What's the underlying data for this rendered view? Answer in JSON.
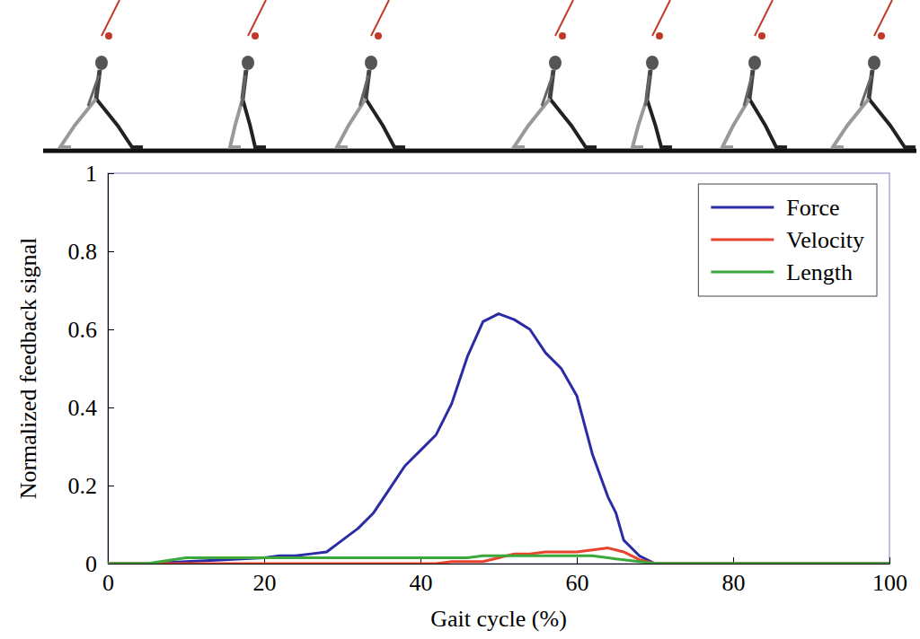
{
  "chart_data": {
    "type": "line",
    "x_label": "Gait cycle (%)",
    "y_label": "Normalized feedback signal",
    "x": [
      0,
      5,
      10,
      15,
      20,
      22,
      24,
      26,
      28,
      30,
      32,
      34,
      36,
      38,
      40,
      42,
      44,
      46,
      48,
      50,
      52,
      54,
      56,
      58,
      60,
      62,
      64,
      65,
      66,
      68,
      70,
      80,
      90,
      100
    ],
    "series": [
      {
        "name": "Force",
        "color": "#2b2ba6",
        "values": [
          0,
          0,
          0.005,
          0.01,
          0.015,
          0.02,
          0.02,
          0.025,
          0.03,
          0.06,
          0.09,
          0.13,
          0.19,
          0.25,
          0.29,
          0.33,
          0.41,
          0.53,
          0.62,
          0.64,
          0.625,
          0.6,
          0.54,
          0.5,
          0.43,
          0.28,
          0.17,
          0.13,
          0.06,
          0.02,
          0,
          0,
          0,
          0
        ]
      },
      {
        "name": "Velocity",
        "color": "#e8432c",
        "values": [
          0,
          0,
          0,
          0,
          0,
          0,
          0,
          0,
          0,
          0,
          0,
          0,
          0,
          0,
          0,
          0,
          0.005,
          0.005,
          0.005,
          0.015,
          0.025,
          0.025,
          0.03,
          0.03,
          0.03,
          0.035,
          0.04,
          0.035,
          0.03,
          0.01,
          0,
          0,
          0,
          0
        ]
      },
      {
        "name": "Length",
        "color": "#3aa83a",
        "values": [
          0,
          0,
          0.015,
          0.015,
          0.015,
          0.015,
          0.015,
          0.015,
          0.015,
          0.015,
          0.015,
          0.015,
          0.015,
          0.015,
          0.015,
          0.015,
          0.015,
          0.015,
          0.02,
          0.02,
          0.02,
          0.02,
          0.02,
          0.02,
          0.02,
          0.02,
          0.015,
          0.012,
          0.01,
          0.005,
          0,
          0,
          0,
          0
        ]
      }
    ],
    "xlim": [
      0,
      100
    ],
    "xticks": [
      0,
      20,
      40,
      60,
      80,
      100
    ],
    "ylim": [
      0,
      1
    ],
    "yticks": [
      0,
      0.2,
      0.4,
      0.6,
      0.8,
      1
    ],
    "grid": false,
    "legend": "top-right"
  }
}
